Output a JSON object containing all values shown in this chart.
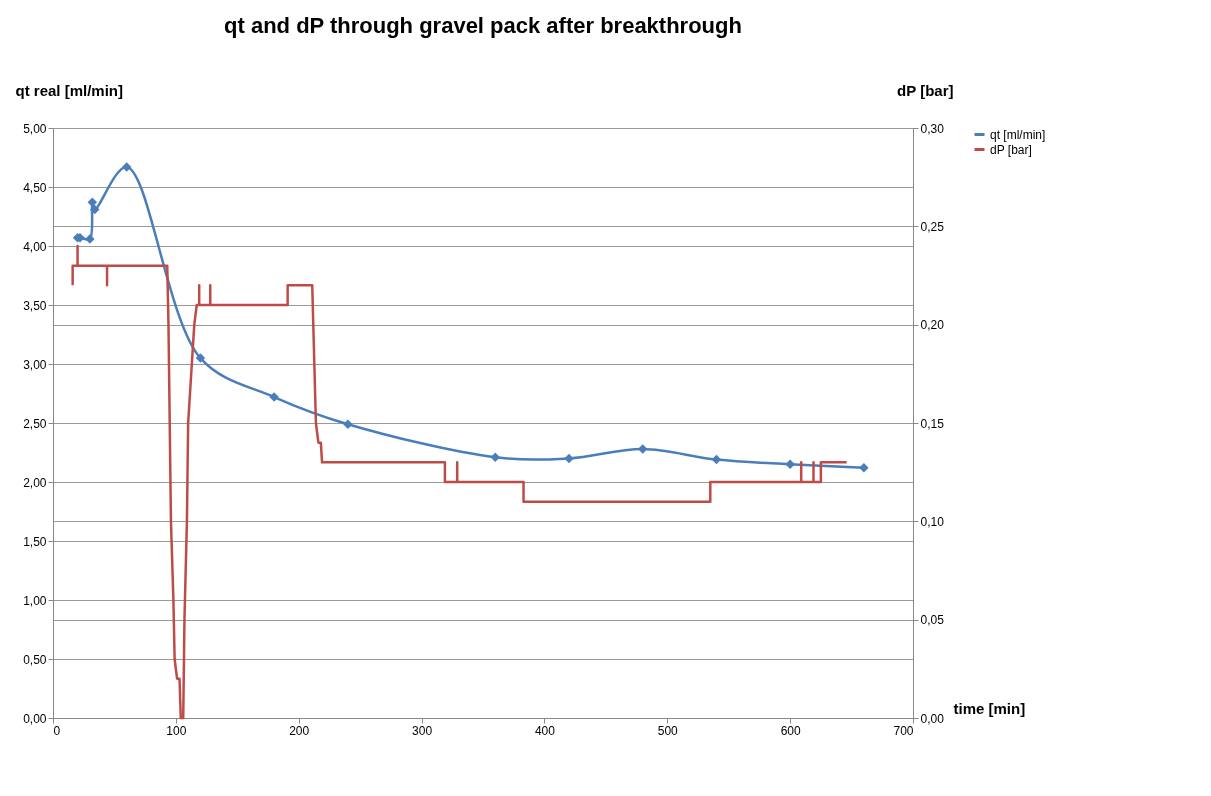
{
  "chart_data": {
    "type": "line",
    "title": "qt and dP through gravel pack after breakthrough",
    "ylabel": "qt real [ml/min]",
    "y2label": "dP [bar]",
    "xlabel": "time [min]",
    "xlim": [
      0,
      700
    ],
    "xticks": [
      0,
      100,
      200,
      300,
      400,
      500,
      600,
      700
    ],
    "ylim": [
      0,
      5
    ],
    "yticks": [
      {
        "value": 0,
        "label": "0,00"
      },
      {
        "value": 0.5,
        "label": "0,50"
      },
      {
        "value": 1,
        "label": "1,00"
      },
      {
        "value": 1.5,
        "label": "1,50"
      },
      {
        "value": 2,
        "label": "2,00"
      },
      {
        "value": 2.5,
        "label": "2,50"
      },
      {
        "value": 3,
        "label": "3,00"
      },
      {
        "value": 3.5,
        "label": "3,50"
      },
      {
        "value": 4,
        "label": "4,00"
      },
      {
        "value": 4.5,
        "label": "4,50"
      },
      {
        "value": 5,
        "label": "5,00"
      }
    ],
    "y2lim": [
      0,
      0.3
    ],
    "y2ticks": [
      {
        "value": 0,
        "label": "0,00"
      },
      {
        "value": 0.05,
        "label": "0,05"
      },
      {
        "value": 0.1,
        "label": "0,10"
      },
      {
        "value": 0.15,
        "label": "0,15"
      },
      {
        "value": 0.2,
        "label": "0,20"
      },
      {
        "value": 0.25,
        "label": "0,25"
      },
      {
        "value": 0.3,
        "label": "0,30"
      }
    ],
    "grid": "y",
    "legend": "right",
    "series": [
      {
        "name": "qt [ml/min]",
        "color": "#4a7ebb",
        "marker": "diamond",
        "x": [
          20,
          22,
          30,
          32,
          34,
          60,
          120,
          180,
          240,
          360,
          420,
          480,
          540,
          600,
          660
        ],
        "values": [
          4.07,
          4.07,
          4.06,
          4.37,
          4.31,
          4.67,
          3.05,
          2.72,
          2.49,
          2.21,
          2.2,
          2.28,
          2.19,
          2.15,
          2.12
        ]
      },
      {
        "name": "dP [bar]",
        "color": "#be4b48",
        "marker": "none",
        "axis": "y2",
        "x": [
          16,
          16,
          20,
          20,
          20,
          44,
          44,
          44,
          93,
          94,
          96,
          98,
          99,
          101,
          103,
          104,
          106,
          107,
          109,
          110,
          113,
          115,
          117,
          119,
          119,
          119,
          128,
          128,
          128,
          191,
          191,
          211,
          214,
          216,
          218,
          219,
          319,
          319,
          329,
          329,
          329,
          383,
          383,
          535,
          535,
          609,
          609,
          609,
          619,
          619,
          619,
          625,
          625,
          646
        ],
        "values": [
          0.22,
          0.23,
          0.23,
          0.24,
          0.23,
          0.23,
          0.22,
          0.23,
          0.23,
          0.2,
          0.1,
          0.06,
          0.03,
          0.02,
          0.02,
          0,
          0,
          0.05,
          0.1,
          0.15,
          0.18,
          0.2,
          0.21,
          0.21,
          0.22,
          0.21,
          0.21,
          0.22,
          0.21,
          0.21,
          0.22,
          0.22,
          0.15,
          0.14,
          0.14,
          0.13,
          0.13,
          0.12,
          0.12,
          0.13,
          0.12,
          0.12,
          0.11,
          0.11,
          0.12,
          0.12,
          0.13,
          0.12,
          0.12,
          0.13,
          0.12,
          0.12,
          0.13,
          0.13
        ]
      }
    ]
  }
}
